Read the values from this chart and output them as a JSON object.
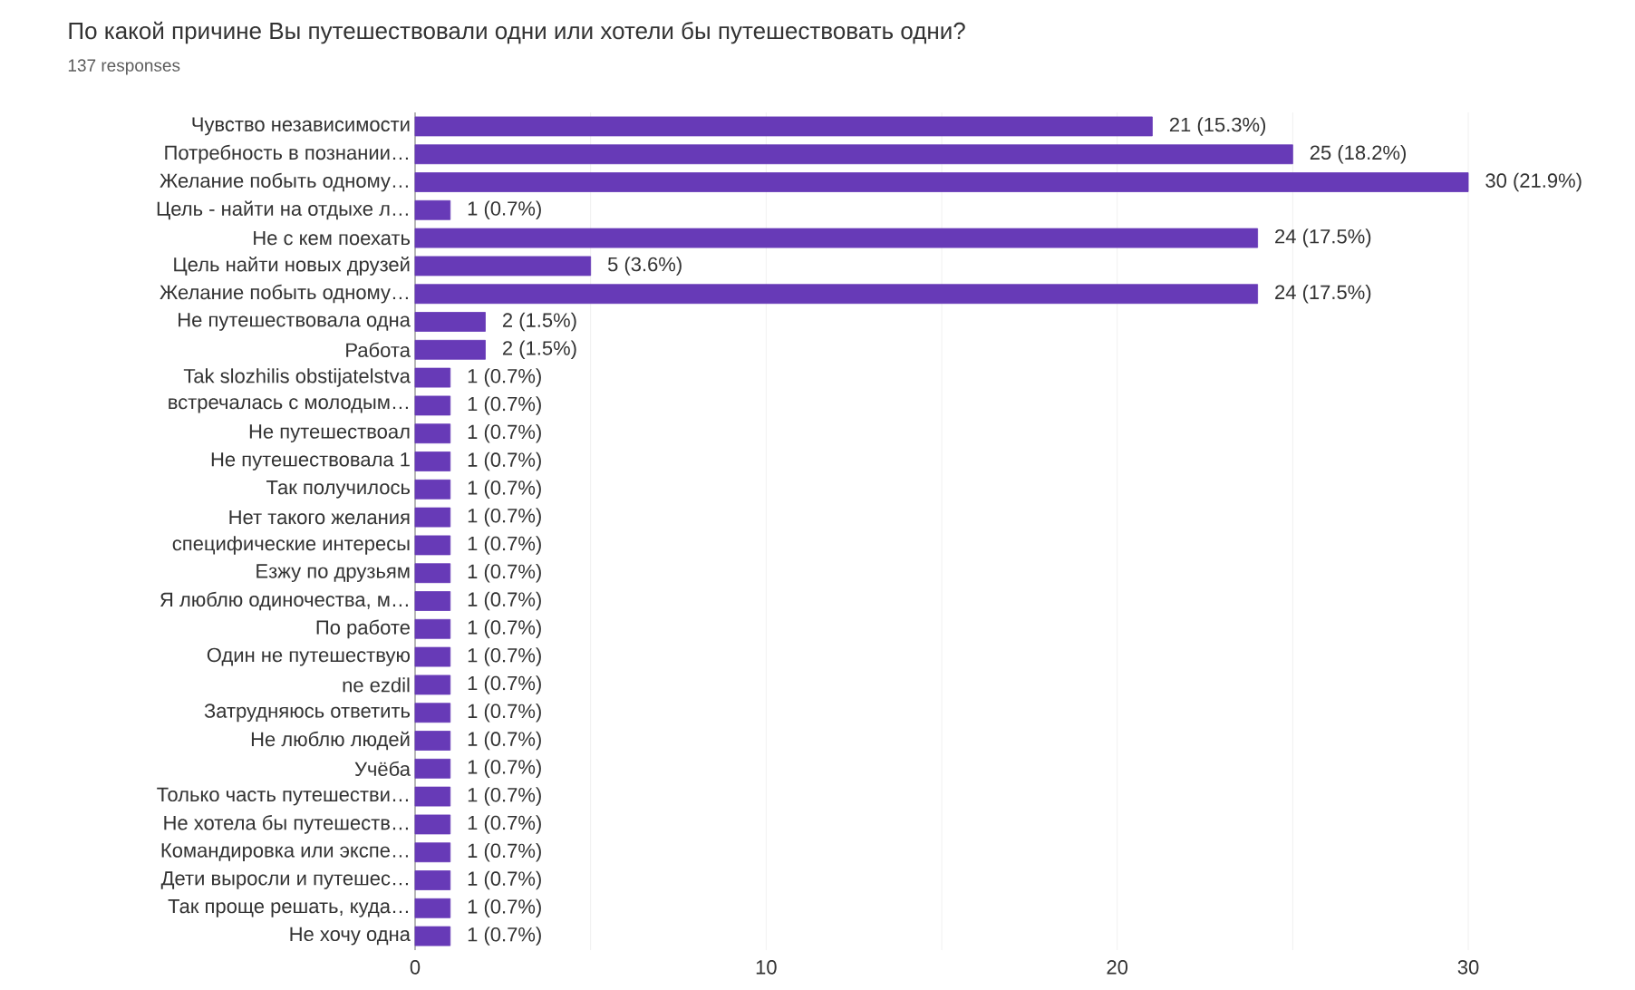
{
  "chart_data": {
    "type": "bar",
    "orientation": "horizontal",
    "title": "По какой причине Вы путешествовали одни или хотели бы путешествовать одни?",
    "subtitle": "137 responses",
    "categories": [
      "Чувство независимости",
      "Потребность в познании…",
      "Желание побыть одному…",
      "Цель - найти на отдыхе л…",
      "Не с кем поехать",
      "Цель найти новых друзей",
      "Желание побыть одному…",
      "Не путешествовала одна",
      "Работа",
      "Tak slozhilis obstijatelstva",
      "встречалась с молодым…",
      "Не путешествоал",
      "Не путешествовала 1",
      "Так получилось",
      "Нет такого желания",
      "специфические интересы",
      "Езжу по друзьям",
      "Я люблю одиночества, м…",
      "По работе",
      "Один не путешествую",
      "ne ezdil",
      "Затрудняюсь ответить",
      "Не люблю людей",
      "Учёба",
      "Только часть путешестви…",
      "Не хотела бы путешеств…",
      "Командировка или экспе…",
      "Дети выросли и путешес…",
      "Так проще решать, куда…",
      "Не хочу одна"
    ],
    "values": [
      21,
      25,
      30,
      1,
      24,
      5,
      24,
      2,
      2,
      1,
      1,
      1,
      1,
      1,
      1,
      1,
      1,
      1,
      1,
      1,
      1,
      1,
      1,
      1,
      1,
      1,
      1,
      1,
      1,
      1
    ],
    "value_labels": [
      "21 (15.3%)",
      "25 (18.2%)",
      "30 (21.9%)",
      "1 (0.7%)",
      "24 (17.5%)",
      "5 (3.6%)",
      "24 (17.5%)",
      "2 (1.5%)",
      "2 (1.5%)",
      "1 (0.7%)",
      "1 (0.7%)",
      "1 (0.7%)",
      "1 (0.7%)",
      "1 (0.7%)",
      "1 (0.7%)",
      "1 (0.7%)",
      "1 (0.7%)",
      "1 (0.7%)",
      "1 (0.7%)",
      "1 (0.7%)",
      "1 (0.7%)",
      "1 (0.7%)",
      "1 (0.7%)",
      "1 (0.7%)",
      "1 (0.7%)",
      "1 (0.7%)",
      "1 (0.7%)",
      "1 (0.7%)",
      "1 (0.7%)",
      "1 (0.7%)"
    ],
    "color": "#673ab7",
    "xlim": [
      0,
      30
    ],
    "xticks": [
      0,
      {
        "value": 5,
        "label": null
      },
      10,
      {
        "value": 15,
        "label": null
      },
      20,
      {
        "value": 25,
        "label": null
      },
      30
    ],
    "grid": "x"
  }
}
